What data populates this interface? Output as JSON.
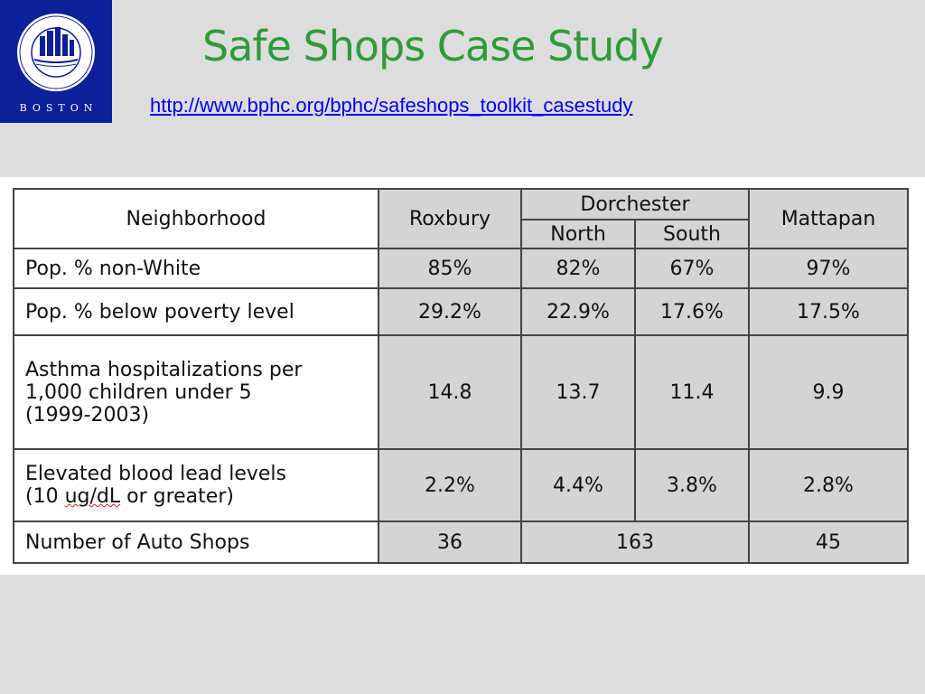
{
  "logo": {
    "seal_text": "PUBLIC HEALTH COMMISSION",
    "seal_year": "1799",
    "city": "BOSTON"
  },
  "header": {
    "title": "Safe Shops Case Study",
    "url": "http://www.bphc.org/bphc/safeshops_toolkit_casestudy"
  },
  "table": {
    "header": {
      "neighborhood": "Neighborhood",
      "roxbury": "Roxbury",
      "dorchester": "Dorchester",
      "north": "North",
      "south": "South",
      "mattapan": "Mattapan"
    },
    "rows": [
      {
        "label": "Pop. % non-White",
        "roxbury": "85%",
        "north": "82%",
        "south": "67%",
        "mattapan": "97%"
      },
      {
        "label": "Pop. % below poverty level",
        "roxbury": "29.2%",
        "north": "22.9%",
        "south": "17.6%",
        "mattapan": "17.5%"
      },
      {
        "label_lines": [
          "Asthma hospitalizations per",
          "1,000 children under 5",
          "(1999-2003)"
        ],
        "roxbury": "14.8",
        "north": "13.7",
        "south": "11.4",
        "mattapan": "9.9"
      },
      {
        "label_line1": "Elevated blood lead levels",
        "label_line2_pre": "(10 ",
        "label_line2_unit": "ug/dL",
        "label_line2_post": " or greater)",
        "roxbury": "2.2%",
        "north": "4.4%",
        "south": "3.8%",
        "mattapan": "2.8%"
      }
    ],
    "auto_shops": {
      "label": "Number of Auto Shops",
      "roxbury": "36",
      "dorchester": "163",
      "mattapan": "45"
    }
  }
}
